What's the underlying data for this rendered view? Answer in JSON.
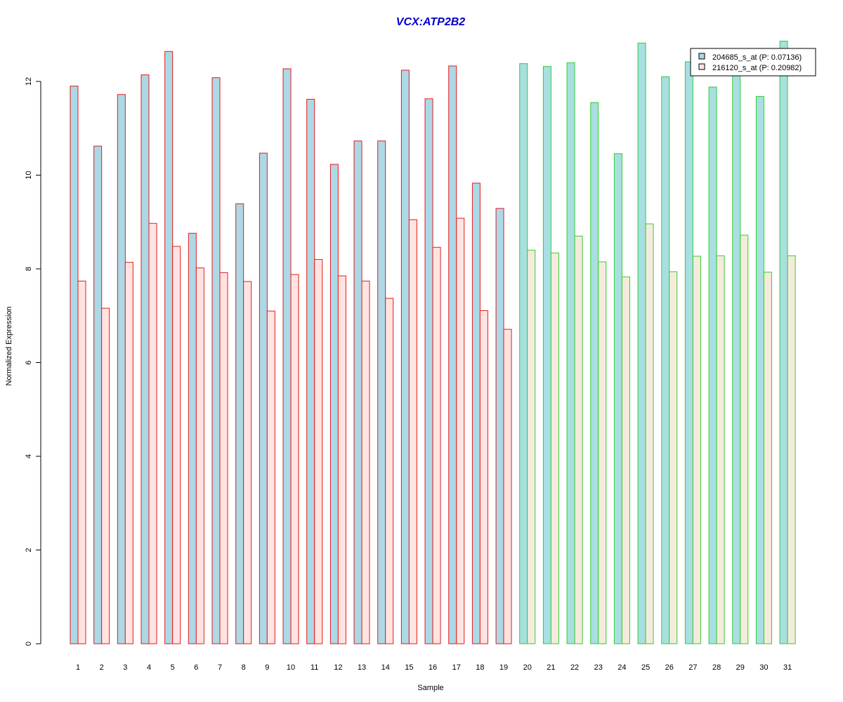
{
  "chart_data": {
    "type": "bar",
    "title": "VCX:ATP2B2",
    "xlabel": "Sample",
    "ylabel": "Normalized Expression",
    "ylim": [
      0,
      12.9
    ],
    "yticks": [
      0,
      2,
      4,
      6,
      8,
      10,
      12
    ],
    "categories": [
      "1",
      "2",
      "3",
      "4",
      "5",
      "6",
      "7",
      "8",
      "9",
      "10",
      "11",
      "12",
      "13",
      "14",
      "15",
      "16",
      "17",
      "18",
      "19",
      "20",
      "21",
      "22",
      "23",
      "24",
      "25",
      "26",
      "27",
      "28",
      "29",
      "30",
      "31"
    ],
    "groups": [
      {
        "samples": "1-19",
        "border_color": "#e41a1c"
      },
      {
        "samples": "20-31",
        "border_color": "#33cc33"
      }
    ],
    "group_split_after": 19,
    "series": [
      {
        "name": "204685_s_at (P: 0.07136)",
        "fill": "#add8e6",
        "fill_group2": "#a8dfe0",
        "values": [
          11.9,
          10.62,
          11.72,
          12.14,
          12.64,
          8.76,
          12.08,
          9.39,
          10.47,
          12.27,
          11.62,
          10.23,
          10.73,
          10.73,
          12.24,
          11.63,
          12.33,
          9.83,
          9.29,
          12.38,
          12.32,
          12.4,
          11.55,
          10.46,
          12.82,
          12.1,
          12.42,
          11.88,
          12.2,
          11.68,
          12.86
        ]
      },
      {
        "name": "216120_s_at (P: 0.20982)",
        "fill": "#ffe4e1",
        "fill_group2": "#f5ebdc",
        "values": [
          7.74,
          7.16,
          8.14,
          8.97,
          8.48,
          8.02,
          7.92,
          7.73,
          7.1,
          7.88,
          8.2,
          7.85,
          7.74,
          7.37,
          9.05,
          8.46,
          9.08,
          7.11,
          6.71,
          8.4,
          8.34,
          8.7,
          8.15,
          7.83,
          8.96,
          7.94,
          8.27,
          8.28,
          8.72,
          7.93,
          8.28
        ]
      }
    ],
    "legend_placement": "top-right",
    "grid": false
  }
}
